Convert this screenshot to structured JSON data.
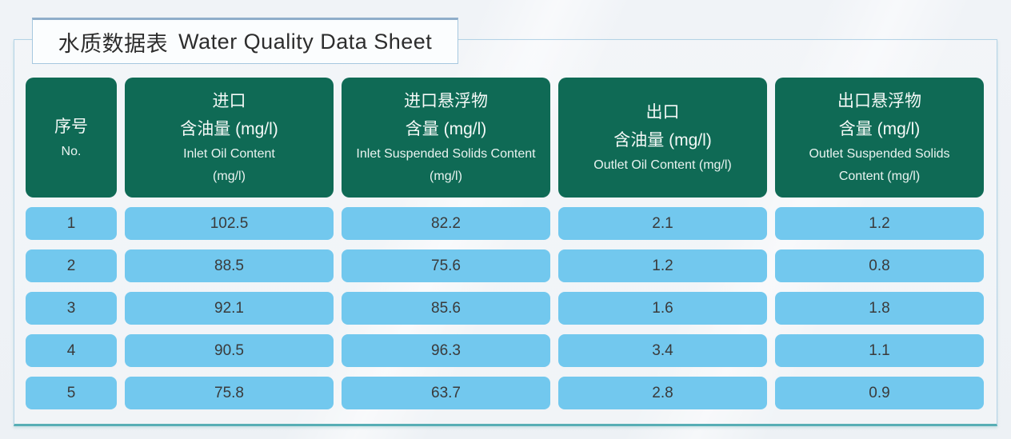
{
  "title": {
    "cn": "水质数据表",
    "en": "Water Quality Data Sheet"
  },
  "colors": {
    "header_cell_green": "#0f6a55",
    "data_cell_blue": "#72c8ee",
    "container_border_blue": "#b3d2e6",
    "container_bottom_teal": "#57aeb5",
    "title_top_border_blue": "#8fadca",
    "page_background": "#eef1f5",
    "header_text": "#f4f9f7",
    "data_text": "#3a3a3a"
  },
  "table": {
    "headers": [
      {
        "cn1": "序号",
        "en1": "No."
      },
      {
        "cn1": "进口",
        "cn2": "含油量 (mg/l)",
        "en1": "Inlet Oil Content",
        "en2": "(mg/l)"
      },
      {
        "cn1": "进口悬浮物",
        "cn2": "含量 (mg/l)",
        "en1": "Inlet Suspended Solids Content",
        "en2": "(mg/l)"
      },
      {
        "cn1": "出口",
        "cn2": "含油量 (mg/l)",
        "en1": "Outlet Oil Content (mg/l)"
      },
      {
        "cn1": "出口悬浮物",
        "cn2": "含量 (mg/l)",
        "en1": "Outlet Suspended Solids",
        "en2": "Content (mg/l)"
      }
    ],
    "rows": [
      [
        "1",
        "102.5",
        "82.2",
        "2.1",
        "1.2"
      ],
      [
        "2",
        "88.5",
        "75.6",
        "1.2",
        "0.8"
      ],
      [
        "3",
        "92.1",
        "85.6",
        "1.6",
        "1.8"
      ],
      [
        "4",
        "90.5",
        "96.3",
        "3.4",
        "1.1"
      ],
      [
        "5",
        "75.8",
        "63.7",
        "2.8",
        "0.9"
      ]
    ]
  },
  "chart_data": {
    "type": "table",
    "title": "水质数据表 Water Quality Data Sheet",
    "columns": [
      "序号 No.",
      "进口含油量 (mg/l) Inlet Oil Content (mg/l)",
      "进口悬浮物含量 (mg/l) Inlet Suspended Solids Content (mg/l)",
      "出口含油量 (mg/l) Outlet Oil Content (mg/l)",
      "出口悬浮物含量 (mg/l) Outlet Suspended Solids Content (mg/l)"
    ],
    "rows": [
      [
        1,
        102.5,
        82.2,
        2.1,
        1.2
      ],
      [
        2,
        88.5,
        75.6,
        1.2,
        0.8
      ],
      [
        3,
        92.1,
        85.6,
        1.6,
        1.8
      ],
      [
        4,
        90.5,
        96.3,
        3.4,
        1.1
      ],
      [
        5,
        75.8,
        63.7,
        2.8,
        0.9
      ]
    ]
  }
}
